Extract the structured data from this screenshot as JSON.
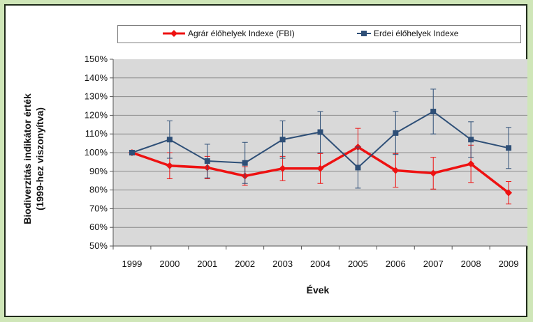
{
  "chart_data": {
    "type": "line",
    "categories": [
      "1999",
      "2000",
      "2001",
      "2002",
      "2003",
      "2004",
      "2005",
      "2006",
      "2007",
      "2008",
      "2009"
    ],
    "series": [
      {
        "name": "Agrár élőhelyek Indexe (FBI)",
        "color": "#ee1111",
        "marker": "diamond",
        "values": [
          100,
          93,
          92,
          87.5,
          91.5,
          91.5,
          103,
          90.5,
          89,
          94,
          78.5
        ],
        "error": [
          0,
          7,
          6,
          5,
          6.5,
          8,
          10,
          9,
          8.5,
          10,
          6
        ]
      },
      {
        "name": "Erdei élőhelyek Indexe",
        "color": "#2e4f77",
        "marker": "square",
        "values": [
          100,
          107,
          95.5,
          94.5,
          107,
          111,
          92,
          110.5,
          122,
          107,
          102.5
        ],
        "error": [
          0,
          10,
          9,
          11,
          10,
          11,
          11,
          11.5,
          12,
          9.5,
          11
        ]
      }
    ],
    "yticks": [
      "150%",
      "140%",
      "130%",
      "120%",
      "110%",
      "100%",
      "90%",
      "80%",
      "70%",
      "60%",
      "50%"
    ],
    "ylim": [
      50,
      150
    ],
    "ylabel_line1": "Biodiverzitás indikátor érték",
    "ylabel_line2": "(1999-hez viszonyítva)",
    "xlabel": "Évek",
    "grid": true,
    "legend_position": "top"
  }
}
